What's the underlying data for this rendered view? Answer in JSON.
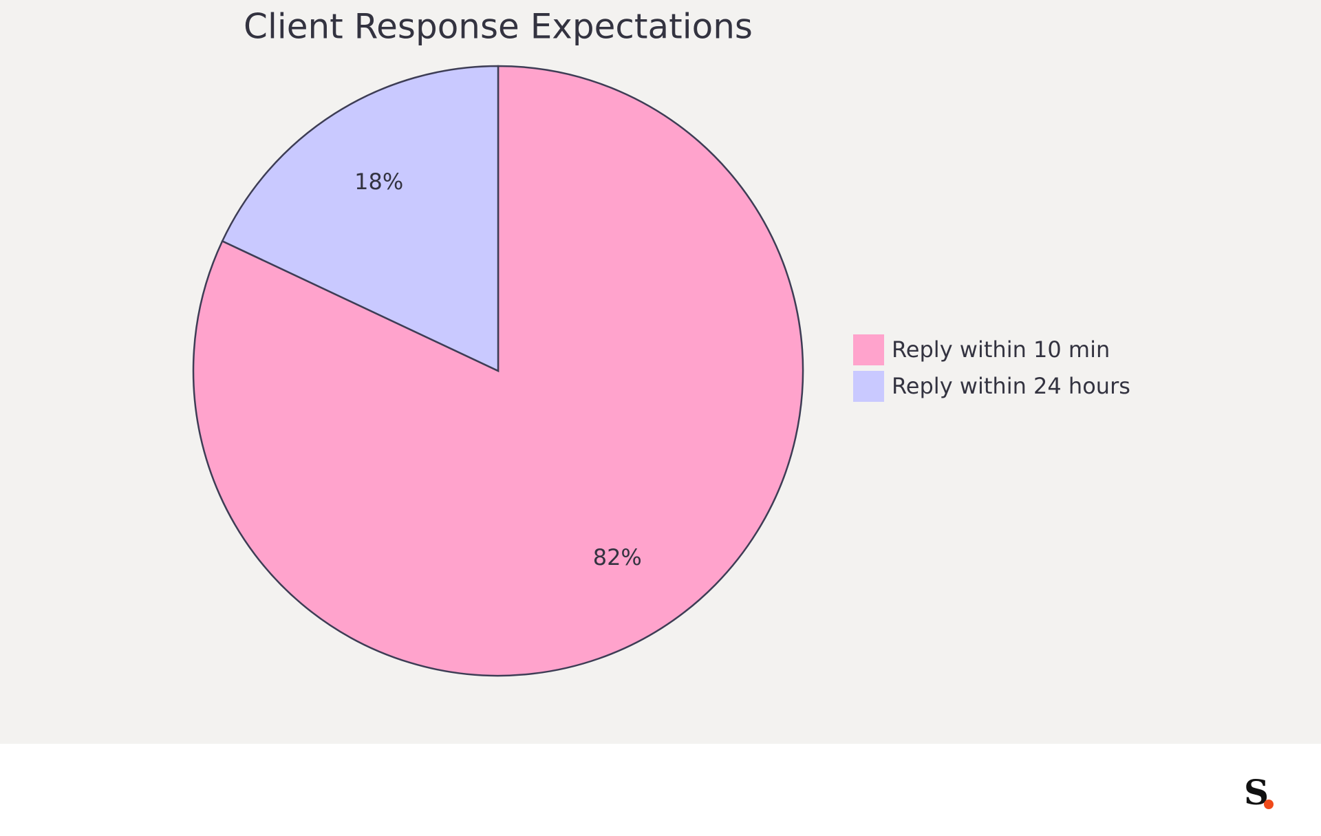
{
  "chart_data": {
    "type": "pie",
    "title": "Client Response Expectations",
    "categories": [
      "Reply within 10 min",
      "Reply within 24 hours"
    ],
    "values": [
      82,
      18
    ],
    "value_labels": [
      "82%",
      "18%"
    ],
    "colors": [
      "#ffa3cc",
      "#c9c9ff"
    ],
    "legend": "right"
  },
  "logo": "S"
}
